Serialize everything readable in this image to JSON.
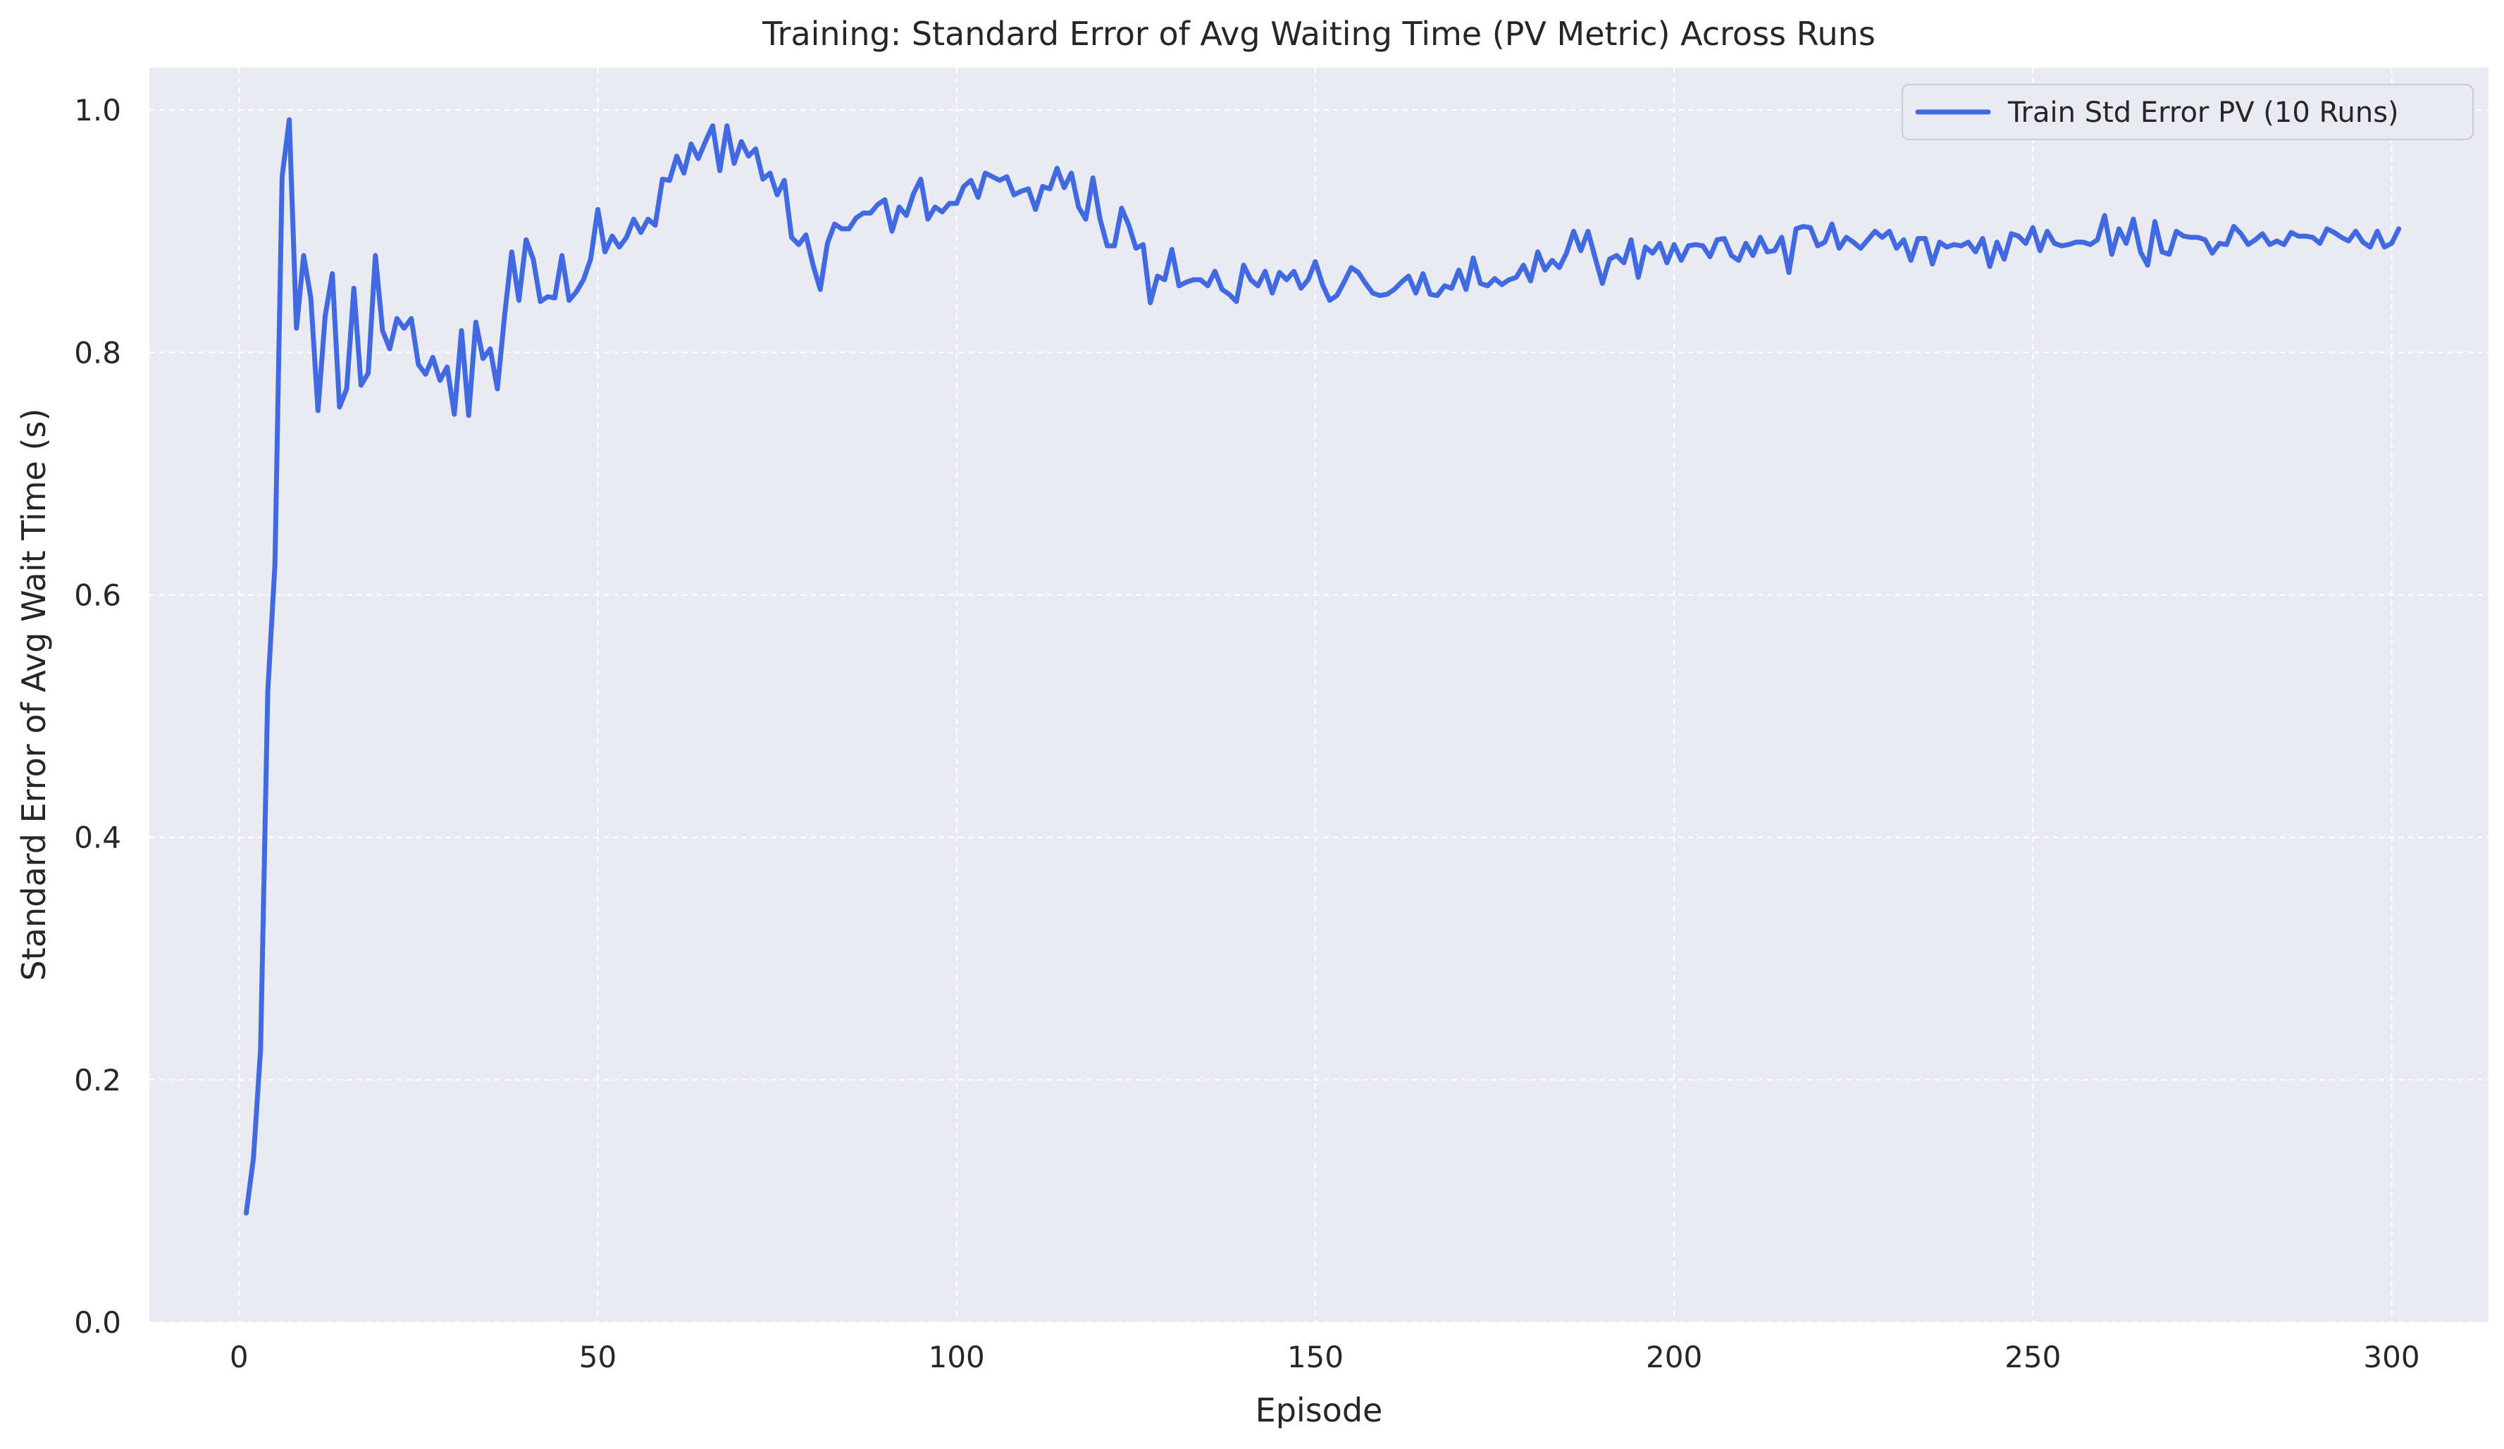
{
  "chart_data": {
    "type": "line",
    "title": "Training: Standard Error of Avg Waiting Time (PV Metric) Across Runs",
    "xlabel": "Episode",
    "ylabel": "Standard Error of Avg Wait Time (s)",
    "xlim": [
      -12.5,
      313.5
    ],
    "ylim": [
      0.0,
      1.035
    ],
    "xticks": [
      0,
      50,
      100,
      150,
      200,
      250,
      300
    ],
    "xtick_labels": [
      "0",
      "50",
      "100",
      "150",
      "200",
      "250",
      "300"
    ],
    "yticks": [
      0.0,
      0.2,
      0.4,
      0.6,
      0.8,
      1.0
    ],
    "ytick_labels": [
      "0.0",
      "0.2",
      "0.4",
      "0.6",
      "0.8",
      "1.0"
    ],
    "grid": true,
    "legend_position": "top-right",
    "series": [
      {
        "name": "Train Std Error PV (10 Runs)",
        "color": "#4169e1",
        "x_start": 1,
        "x_step": 1,
        "values": [
          0.09,
          0.135,
          0.225,
          0.52,
          0.625,
          0.945,
          0.992,
          0.82,
          0.88,
          0.845,
          0.752,
          0.83,
          0.865,
          0.755,
          0.77,
          0.853,
          0.773,
          0.783,
          0.88,
          0.818,
          0.803,
          0.828,
          0.82,
          0.828,
          0.79,
          0.782,
          0.796,
          0.777,
          0.788,
          0.749,
          0.818,
          0.748,
          0.825,
          0.795,
          0.803,
          0.77,
          0.83,
          0.883,
          0.843,
          0.893,
          0.877,
          0.842,
          0.846,
          0.845,
          0.88,
          0.843,
          0.85,
          0.86,
          0.877,
          0.918,
          0.883,
          0.896,
          0.887,
          0.895,
          0.91,
          0.899,
          0.91,
          0.905,
          0.943,
          0.942,
          0.962,
          0.948,
          0.972,
          0.96,
          0.974,
          0.987,
          0.95,
          0.987,
          0.956,
          0.974,
          0.962,
          0.968,
          0.943,
          0.948,
          0.93,
          0.942,
          0.895,
          0.889,
          0.897,
          0.872,
          0.852,
          0.89,
          0.906,
          0.902,
          0.902,
          0.911,
          0.915,
          0.915,
          0.922,
          0.926,
          0.9,
          0.92,
          0.913,
          0.931,
          0.943,
          0.91,
          0.92,
          0.916,
          0.923,
          0.923,
          0.937,
          0.942,
          0.928,
          0.948,
          0.945,
          0.942,
          0.945,
          0.93,
          0.933,
          0.935,
          0.918,
          0.937,
          0.935,
          0.952,
          0.936,
          0.948,
          0.92,
          0.91,
          0.944,
          0.91,
          0.888,
          0.888,
          0.919,
          0.905,
          0.886,
          0.889,
          0.841,
          0.863,
          0.86,
          0.885,
          0.855,
          0.858,
          0.86,
          0.86,
          0.855,
          0.867,
          0.852,
          0.848,
          0.842,
          0.872,
          0.86,
          0.855,
          0.867,
          0.849,
          0.866,
          0.86,
          0.867,
          0.853,
          0.86,
          0.875,
          0.856,
          0.843,
          0.847,
          0.858,
          0.87,
          0.866,
          0.857,
          0.849,
          0.847,
          0.848,
          0.852,
          0.858,
          0.863,
          0.849,
          0.865,
          0.848,
          0.847,
          0.855,
          0.853,
          0.868,
          0.852,
          0.878,
          0.857,
          0.855,
          0.861,
          0.856,
          0.86,
          0.862,
          0.872,
          0.859,
          0.883,
          0.868,
          0.876,
          0.87,
          0.882,
          0.9,
          0.884,
          0.9,
          0.878,
          0.857,
          0.877,
          0.88,
          0.874,
          0.893,
          0.862,
          0.887,
          0.882,
          0.89,
          0.874,
          0.889,
          0.876,
          0.888,
          0.889,
          0.888,
          0.879,
          0.893,
          0.894,
          0.88,
          0.876,
          0.89,
          0.88,
          0.895,
          0.883,
          0.884,
          0.895,
          0.866,
          0.902,
          0.904,
          0.903,
          0.888,
          0.891,
          0.906,
          0.886,
          0.895,
          0.891,
          0.886,
          0.893,
          0.9,
          0.895,
          0.9,
          0.886,
          0.893,
          0.876,
          0.894,
          0.894,
          0.873,
          0.891,
          0.887,
          0.889,
          0.888,
          0.891,
          0.883,
          0.894,
          0.871,
          0.891,
          0.877,
          0.898,
          0.896,
          0.89,
          0.903,
          0.884,
          0.9,
          0.89,
          0.888,
          0.889,
          0.891,
          0.891,
          0.889,
          0.893,
          0.913,
          0.881,
          0.902,
          0.89,
          0.91,
          0.883,
          0.872,
          0.908,
          0.883,
          0.881,
          0.9,
          0.896,
          0.895,
          0.895,
          0.893,
          0.882,
          0.89,
          0.889,
          0.904,
          0.898,
          0.889,
          0.893,
          0.898,
          0.889,
          0.892,
          0.889,
          0.899,
          0.896,
          0.896,
          0.895,
          0.89,
          0.902,
          0.899,
          0.895,
          0.892,
          0.9,
          0.891,
          0.887,
          0.9,
          0.887,
          0.89,
          0.902
        ]
      }
    ]
  }
}
